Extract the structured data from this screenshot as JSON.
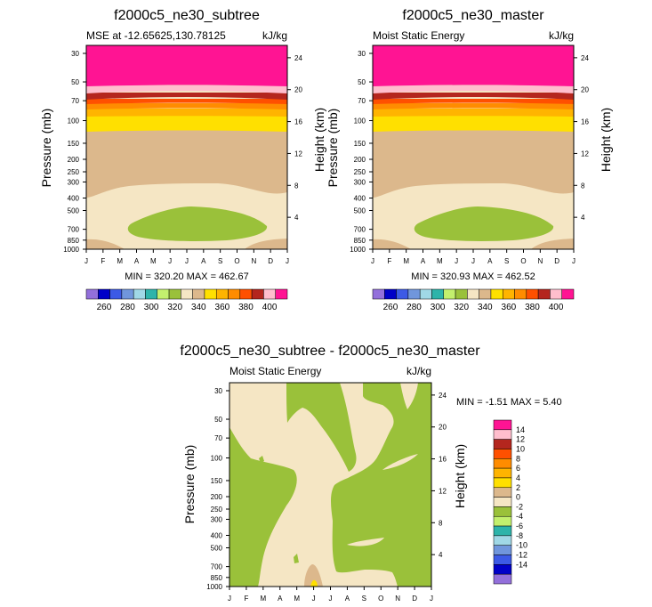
{
  "colors": {
    "pos": [
      "#f5e6c4",
      "#dcb88c",
      "#ffe000",
      "#ffb400",
      "#ff8c00",
      "#ff5000",
      "#b4261e",
      "#ffbecd",
      "#ff1493"
    ],
    "neg": [
      "#9ac13a",
      "#c3f06e",
      "#2db4aa",
      "#a0d8e6",
      "#7096dc",
      "#3c5ae6",
      "#0000c8",
      "#9370db"
    ]
  },
  "chart_data": [
    {
      "type": "contour",
      "main_title": "f2000c5_ne30_subtree",
      "left_title": "MSE at -12.65625,130.78125",
      "right_title": "kJ/kg",
      "ylabel": "Pressure (mb)",
      "y2label": "Height (km)",
      "yticks": [
        "30",
        "50",
        "70",
        "100",
        "150",
        "200",
        "250",
        "300",
        "400",
        "500",
        "700",
        "850",
        "1000"
      ],
      "y2ticks": [
        "24",
        "20",
        "16",
        "12",
        "8",
        "4"
      ],
      "xticks": [
        "J",
        "F",
        "M",
        "A",
        "M",
        "J",
        "J",
        "A",
        "S",
        "O",
        "N",
        "D",
        "J"
      ],
      "stats": "MIN = 320.20  MAX = 462.67",
      "min": 320.2,
      "max": 462.67,
      "colorbar_ticks": [
        "260",
        "280",
        "300",
        "320",
        "340",
        "360",
        "380",
        "400"
      ],
      "colorbar_colors": [
        "#9370db",
        "#0000c8",
        "#3c5ae6",
        "#7096dc",
        "#a0d8e6",
        "#2db4aa",
        "#c3f06e",
        "#9ac13a",
        "#f5e6c4",
        "#dcb88c",
        "#ffe000",
        "#ffb400",
        "#ff8c00",
        "#ff5000",
        "#b4261e",
        "#ffbecd",
        "#ff1493"
      ]
    },
    {
      "type": "contour",
      "main_title": "f2000c5_ne30_master",
      "left_title": "Moist Static Energy",
      "right_title": "kJ/kg",
      "ylabel": "Pressure (mb)",
      "y2label": "Height (km)",
      "yticks": [
        "30",
        "50",
        "70",
        "100",
        "150",
        "200",
        "250",
        "300",
        "400",
        "500",
        "700",
        "850",
        "1000"
      ],
      "y2ticks": [
        "24",
        "20",
        "16",
        "12",
        "8",
        "4"
      ],
      "xticks": [
        "J",
        "F",
        "M",
        "A",
        "M",
        "J",
        "J",
        "A",
        "S",
        "O",
        "N",
        "D",
        "J"
      ],
      "stats": "MIN = 320.93  MAX = 462.52",
      "min": 320.93,
      "max": 462.52,
      "colorbar_ticks": [
        "260",
        "280",
        "300",
        "320",
        "340",
        "360",
        "380",
        "400"
      ],
      "colorbar_colors": [
        "#9370db",
        "#0000c8",
        "#3c5ae6",
        "#7096dc",
        "#a0d8e6",
        "#2db4aa",
        "#c3f06e",
        "#9ac13a",
        "#f5e6c4",
        "#dcb88c",
        "#ffe000",
        "#ffb400",
        "#ff8c00",
        "#ff5000",
        "#b4261e",
        "#ffbecd",
        "#ff1493"
      ]
    },
    {
      "type": "contour",
      "main_title": "f2000c5_ne30_subtree - f2000c5_ne30_master",
      "left_title": "Moist Static Energy",
      "right_title": "kJ/kg",
      "ylabel": "Pressure (mb)",
      "y2label": "Height (km)",
      "yticks": [
        "30",
        "50",
        "70",
        "100",
        "150",
        "200",
        "250",
        "300",
        "400",
        "500",
        "700",
        "850",
        "1000"
      ],
      "y2ticks": [
        "24",
        "20",
        "16",
        "12",
        "8",
        "4"
      ],
      "xticks": [
        "J",
        "F",
        "M",
        "A",
        "M",
        "J",
        "J",
        "A",
        "S",
        "O",
        "N",
        "D",
        "J"
      ],
      "stats": "MIN =  -1.51  MAX =   5.40",
      "min": -1.51,
      "max": 5.4,
      "colorbar_ticks": [
        "14",
        "12",
        "10",
        "8",
        "6",
        "4",
        "2",
        "0",
        "-2",
        "-4",
        "-6",
        "-8",
        "-10",
        "-12",
        "-14"
      ],
      "colorbar_colors": [
        "#ff1493",
        "#ffbecd",
        "#b4261e",
        "#ff5000",
        "#ff8c00",
        "#ffb400",
        "#ffe000",
        "#dcb88c",
        "#f5e6c4",
        "#9ac13a",
        "#c3f06e",
        "#2db4aa",
        "#a0d8e6",
        "#7096dc",
        "#3c5ae6",
        "#0000c8",
        "#9370db"
      ]
    }
  ]
}
